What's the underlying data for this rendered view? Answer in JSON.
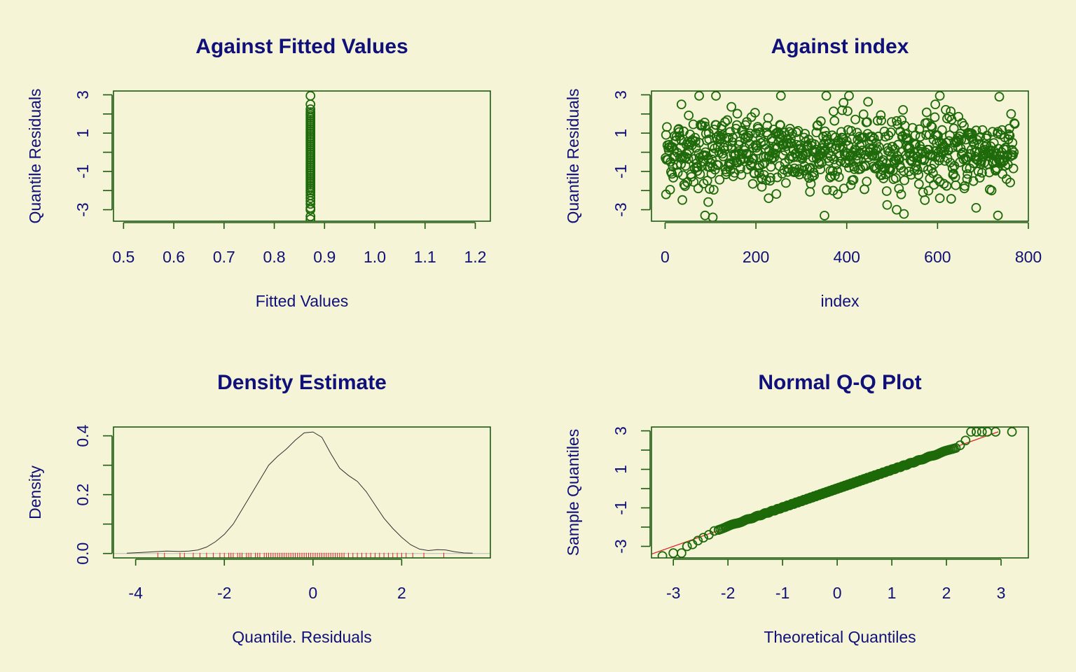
{
  "chart_data": [
    {
      "type": "scatter",
      "title": "Against Fitted Values",
      "xlabel": "Fitted Values",
      "ylabel": "Quantile Residuals",
      "xlim": [
        0.48,
        1.23
      ],
      "ylim": [
        -3.6,
        3.2
      ],
      "xticks": [
        0.5,
        0.6,
        0.7,
        0.8,
        0.9,
        1.0,
        1.1,
        1.2
      ],
      "xtick_labels": [
        "0.5",
        "0.6",
        "0.7",
        "0.8",
        "0.9",
        "1.0",
        "1.1",
        "1.2"
      ],
      "yticks": [
        -3,
        -2,
        -1,
        0,
        1,
        2,
        3
      ],
      "ytick_labels": [
        "-3",
        "",
        "-1",
        "",
        "1",
        "",
        "3"
      ],
      "fitted_value": 0.872,
      "residuals": [
        -3.5,
        -3.35,
        -3.0,
        -2.9,
        -2.7,
        -2.55,
        -2.4,
        -2.25,
        -2.1,
        -2.0,
        -1.9,
        -1.8,
        -1.7,
        -1.6,
        -1.5,
        -1.4,
        -1.3,
        -1.2,
        -1.1,
        -1.0,
        -0.9,
        -0.8,
        -0.7,
        -0.6,
        -0.5,
        -0.4,
        -0.3,
        -0.2,
        -0.1,
        0.0,
        0.1,
        0.2,
        0.3,
        0.4,
        0.5,
        0.6,
        0.7,
        0.8,
        0.9,
        1.0,
        1.1,
        1.2,
        1.3,
        1.4,
        1.5,
        1.6,
        1.7,
        1.8,
        1.9,
        2.0,
        2.1,
        2.25,
        2.5,
        2.95
      ]
    },
    {
      "type": "scatter",
      "title": "Against  index",
      "xlabel": "index",
      "ylabel": "Quantile Residuals",
      "xlim": [
        -30,
        800
      ],
      "ylim": [
        -3.6,
        3.2
      ],
      "xticks": [
        0,
        200,
        400,
        600,
        800
      ],
      "xtick_labels": [
        "0",
        "200",
        "400",
        "600",
        "800"
      ],
      "yticks": [
        -3,
        -2,
        -1,
        0,
        1,
        2,
        3
      ],
      "ytick_labels": [
        "-3",
        "",
        "-1",
        "",
        "1",
        "",
        "3"
      ],
      "n_points": 770,
      "notable_points": [
        [
          75,
          2.95
        ],
        [
          112,
          2.95
        ],
        [
          255,
          2.95
        ],
        [
          355,
          2.95
        ],
        [
          405,
          2.95
        ],
        [
          605,
          2.95
        ],
        [
          36,
          2.5
        ],
        [
          595,
          2.5
        ],
        [
          2,
          -2.2
        ],
        [
          105,
          -3.4
        ],
        [
          88,
          -3.3
        ],
        [
          95,
          -2.6
        ],
        [
          510,
          -3.0
        ],
        [
          685,
          -2.9
        ],
        [
          733,
          -3.3
        ],
        [
          605,
          -2.4
        ],
        [
          520,
          -2.2
        ],
        [
          228,
          -2.4
        ]
      ]
    },
    {
      "type": "line",
      "title": "Density Estimate",
      "xlabel": "Quantile. Residuals",
      "ylabel": "Density",
      "xlim": [
        -4.5,
        4.0
      ],
      "ylim": [
        -0.015,
        0.43
      ],
      "xticks": [
        -4,
        -2,
        0,
        2
      ],
      "xtick_labels": [
        "-4",
        "-2",
        "0",
        "2"
      ],
      "yticks": [
        0.0,
        0.1,
        0.2,
        0.3,
        0.4
      ],
      "ytick_labels": [
        "0.0",
        "",
        "0.2",
        "",
        "0.4"
      ],
      "x": [
        -4.2,
        -3.9,
        -3.6,
        -3.3,
        -3.0,
        -2.8,
        -2.6,
        -2.4,
        -2.2,
        -2.0,
        -1.8,
        -1.6,
        -1.4,
        -1.2,
        -1.0,
        -0.8,
        -0.6,
        -0.4,
        -0.2,
        0.0,
        0.2,
        0.4,
        0.6,
        0.8,
        1.0,
        1.2,
        1.4,
        1.6,
        1.8,
        2.0,
        2.2,
        2.4,
        2.6,
        2.8,
        3.0,
        3.2,
        3.4,
        3.6
      ],
      "y": [
        0.001,
        0.003,
        0.006,
        0.008,
        0.007,
        0.008,
        0.012,
        0.022,
        0.04,
        0.065,
        0.1,
        0.15,
        0.2,
        0.25,
        0.3,
        0.33,
        0.355,
        0.385,
        0.41,
        0.413,
        0.395,
        0.34,
        0.29,
        0.265,
        0.245,
        0.21,
        0.165,
        0.12,
        0.085,
        0.055,
        0.03,
        0.015,
        0.01,
        0.013,
        0.012,
        0.006,
        0.002,
        0.001
      ],
      "rug": [
        -3.5,
        -3.35,
        -3.0,
        -2.9,
        -2.7,
        -2.55,
        -2.4,
        -2.25,
        -2.1,
        -2.0,
        -1.9,
        -1.85,
        -1.8,
        -1.7,
        -1.65,
        -1.6,
        -1.5,
        -1.45,
        -1.4,
        -1.3,
        -1.25,
        -1.2,
        -1.1,
        -1.05,
        -1.0,
        -0.95,
        -0.9,
        -0.85,
        -0.8,
        -0.75,
        -0.7,
        -0.65,
        -0.6,
        -0.55,
        -0.5,
        -0.45,
        -0.4,
        -0.35,
        -0.3,
        -0.25,
        -0.2,
        -0.15,
        -0.1,
        -0.05,
        0.0,
        0.05,
        0.1,
        0.15,
        0.2,
        0.25,
        0.3,
        0.35,
        0.4,
        0.45,
        0.5,
        0.55,
        0.6,
        0.65,
        0.7,
        0.8,
        0.9,
        1.0,
        1.1,
        1.2,
        1.3,
        1.4,
        1.5,
        1.6,
        1.7,
        1.8,
        1.9,
        2.0,
        2.1,
        2.25,
        2.5,
        2.95
      ]
    },
    {
      "type": "scatter",
      "title": "Normal Q-Q Plot",
      "xlabel": "Theoretical Quantiles",
      "ylabel": "Sample Quantiles",
      "xlim": [
        -3.4,
        3.5
      ],
      "ylim": [
        -3.6,
        3.2
      ],
      "xticks": [
        -3,
        -2,
        -1,
        0,
        1,
        2,
        3
      ],
      "xtick_labels": [
        "-3",
        "-2",
        "-1",
        "0",
        "1",
        "2",
        "3"
      ],
      "yticks": [
        -3,
        -2,
        -1,
        0,
        1,
        2,
        3
      ],
      "ytick_labels": [
        "-3",
        "",
        "-1",
        "",
        "1",
        "",
        "3"
      ],
      "n_points": 770,
      "reference_line": {
        "intercept": 0.0,
        "slope": 1.0
      },
      "tail_points": [
        [
          -3.2,
          -3.5
        ],
        [
          -3.0,
          -3.35
        ],
        [
          -2.85,
          -3.35
        ],
        [
          -2.75,
          -3.0
        ],
        [
          -2.65,
          -2.9
        ],
        [
          -2.55,
          -2.7
        ],
        [
          -2.45,
          -2.55
        ],
        [
          -2.35,
          -2.4
        ],
        [
          -2.25,
          -2.2
        ],
        [
          2.25,
          2.25
        ],
        [
          2.35,
          2.5
        ],
        [
          2.45,
          2.95
        ],
        [
          2.55,
          2.95
        ],
        [
          2.65,
          2.95
        ],
        [
          2.75,
          2.95
        ],
        [
          2.9,
          2.95
        ],
        [
          3.2,
          2.95
        ]
      ]
    }
  ]
}
